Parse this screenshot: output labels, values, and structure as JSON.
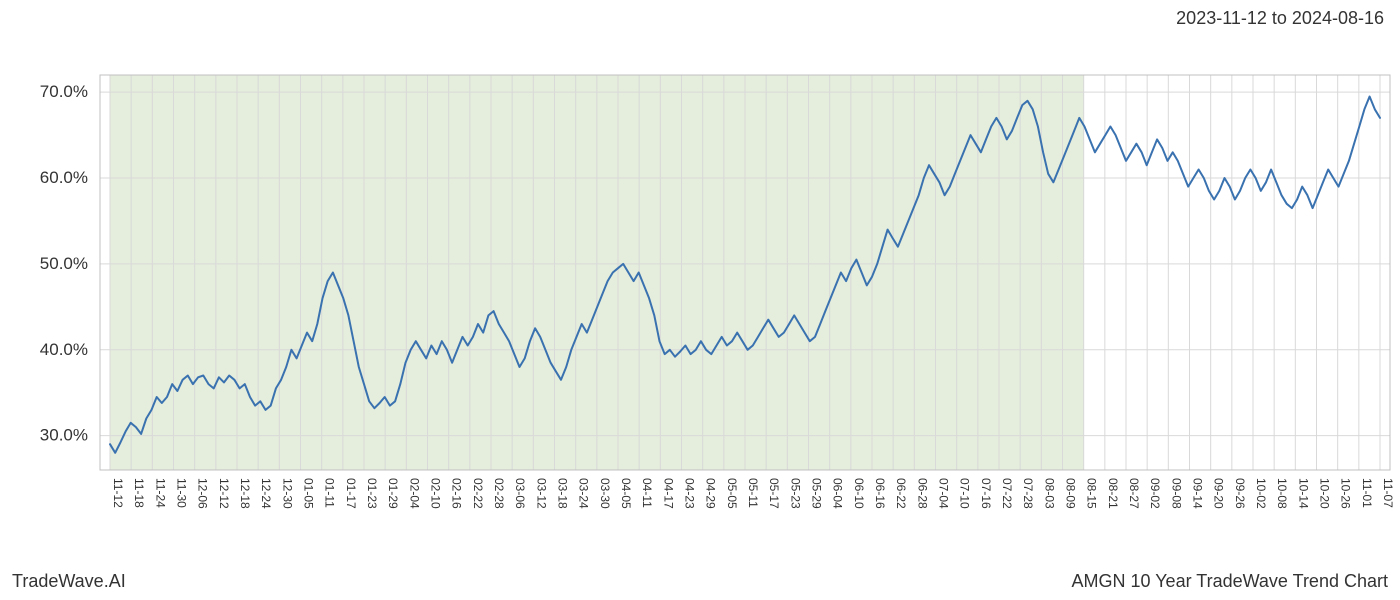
{
  "header": {
    "date_range": "2023-11-12 to 2024-08-16"
  },
  "footer": {
    "brand": "TradeWave.AI",
    "chart_title": "AMGN 10 Year TradeWave Trend Chart"
  },
  "chart": {
    "type": "line",
    "background_color": "#ffffff",
    "plot_border_color": "#c0c0c0",
    "grid_color": "#d9d9d9",
    "line_color": "#3a72b0",
    "line_width": 2,
    "shaded_region_end_label": "08-15",
    "shaded_fill": "#e5eddc",
    "shaded_opacity": 1.0,
    "label_fontsize": 17,
    "xtick_fontsize": 12,
    "y_axis": {
      "min": 26,
      "max": 72,
      "ticks": [
        30,
        40,
        50,
        60,
        70
      ],
      "tick_labels": [
        "30.0%",
        "40.0%",
        "50.0%",
        "60.0%",
        "70.0%"
      ]
    },
    "x_axis": {
      "tick_labels": [
        "11-12",
        "11-18",
        "11-24",
        "11-30",
        "12-06",
        "12-12",
        "12-18",
        "12-24",
        "12-30",
        "01-05",
        "01-11",
        "01-17",
        "01-23",
        "01-29",
        "02-04",
        "02-10",
        "02-16",
        "02-22",
        "02-28",
        "03-06",
        "03-12",
        "03-18",
        "03-24",
        "03-30",
        "04-05",
        "04-11",
        "04-17",
        "04-23",
        "04-29",
        "05-05",
        "05-11",
        "05-17",
        "05-23",
        "05-29",
        "06-04",
        "06-10",
        "06-16",
        "06-22",
        "06-28",
        "07-04",
        "07-10",
        "07-16",
        "07-22",
        "07-28",
        "08-03",
        "08-09",
        "08-15",
        "08-21",
        "08-27",
        "09-02",
        "09-08",
        "09-14",
        "09-20",
        "09-26",
        "10-02",
        "10-08",
        "10-14",
        "10-20",
        "10-26",
        "11-01",
        "11-07"
      ]
    },
    "series": {
      "values": [
        29.0,
        28.0,
        29.2,
        30.5,
        31.5,
        31.0,
        30.2,
        32.0,
        33.0,
        34.5,
        33.8,
        34.5,
        36.0,
        35.2,
        36.5,
        37.0,
        36.0,
        36.8,
        37.0,
        36.0,
        35.5,
        36.8,
        36.2,
        37.0,
        36.5,
        35.5,
        36.0,
        34.5,
        33.5,
        34.0,
        33.0,
        33.5,
        35.5,
        36.5,
        38.0,
        40.0,
        39.0,
        40.5,
        42.0,
        41.0,
        43.0,
        46.0,
        48.0,
        49.0,
        47.5,
        46.0,
        44.0,
        41.0,
        38.0,
        36.0,
        34.0,
        33.2,
        33.8,
        34.5,
        33.5,
        34.0,
        36.0,
        38.5,
        40.0,
        41.0,
        40.0,
        39.0,
        40.5,
        39.5,
        41.0,
        40.0,
        38.5,
        40.0,
        41.5,
        40.5,
        41.5,
        43.0,
        42.0,
        44.0,
        44.5,
        43.0,
        42.0,
        41.0,
        39.5,
        38.0,
        39.0,
        41.0,
        42.5,
        41.5,
        40.0,
        38.5,
        37.5,
        36.5,
        38.0,
        40.0,
        41.5,
        43.0,
        42.0,
        43.5,
        45.0,
        46.5,
        48.0,
        49.0,
        49.5,
        50.0,
        49.0,
        48.0,
        49.0,
        47.5,
        46.0,
        44.0,
        41.0,
        39.5,
        40.0,
        39.2,
        39.8,
        40.5,
        39.5,
        40.0,
        41.0,
        40.0,
        39.5,
        40.5,
        41.5,
        40.5,
        41.0,
        42.0,
        41.0,
        40.0,
        40.5,
        41.5,
        42.5,
        43.5,
        42.5,
        41.5,
        42.0,
        43.0,
        44.0,
        43.0,
        42.0,
        41.0,
        41.5,
        43.0,
        44.5,
        46.0,
        47.5,
        49.0,
        48.0,
        49.5,
        50.5,
        49.0,
        47.5,
        48.5,
        50.0,
        52.0,
        54.0,
        53.0,
        52.0,
        53.5,
        55.0,
        56.5,
        58.0,
        60.0,
        61.5,
        60.5,
        59.5,
        58.0,
        59.0,
        60.5,
        62.0,
        63.5,
        65.0,
        64.0,
        63.0,
        64.5,
        66.0,
        67.0,
        66.0,
        64.5,
        65.5,
        67.0,
        68.5,
        69.0,
        68.0,
        66.0,
        63.0,
        60.5,
        59.5,
        61.0,
        62.5,
        64.0,
        65.5,
        67.0,
        66.0,
        64.5,
        63.0,
        64.0,
        65.0,
        66.0,
        65.0,
        63.5,
        62.0,
        63.0,
        64.0,
        63.0,
        61.5,
        63.0,
        64.5,
        63.5,
        62.0,
        63.0,
        62.0,
        60.5,
        59.0,
        60.0,
        61.0,
        60.0,
        58.5,
        57.5,
        58.5,
        60.0,
        59.0,
        57.5,
        58.5,
        60.0,
        61.0,
        60.0,
        58.5,
        59.5,
        61.0,
        59.5,
        58.0,
        57.0,
        56.5,
        57.5,
        59.0,
        58.0,
        56.5,
        58.0,
        59.5,
        61.0,
        60.0,
        59.0,
        60.5,
        62.0,
        64.0,
        66.0,
        68.0,
        69.5,
        68.0,
        67.0
      ]
    }
  }
}
